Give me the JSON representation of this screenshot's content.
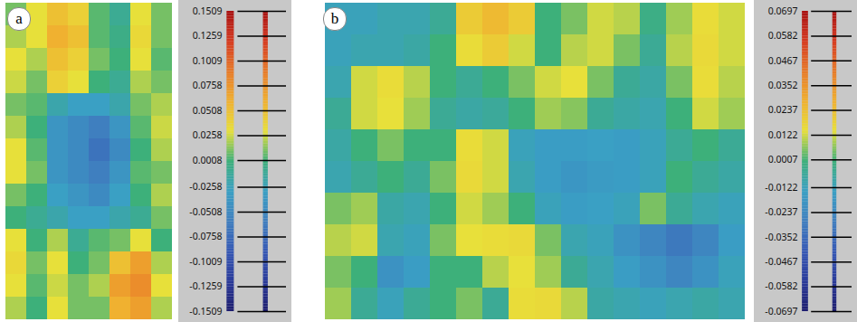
{
  "chart_data": [
    {
      "type": "heatmap",
      "title": "a",
      "tick_labels": false,
      "cells": [
        [
          0.01,
          0.03,
          0.05,
          0.04,
          0.005,
          -0.01,
          0.03,
          0.01
        ],
        [
          0.02,
          0.03,
          0.06,
          0.05,
          0.005,
          -0.005,
          0.035,
          0.01
        ],
        [
          0.03,
          0.02,
          0.05,
          0.04,
          0.01,
          0.0,
          0.03,
          0.005
        ],
        [
          0.025,
          0.01,
          0.04,
          0.03,
          0.0,
          -0.01,
          0.02,
          0.01
        ],
        [
          0.01,
          0.005,
          -0.02,
          -0.03,
          -0.03,
          -0.02,
          0.01,
          0.02
        ],
        [
          0.02,
          0.0,
          -0.04,
          -0.05,
          -0.06,
          -0.04,
          0.005,
          0.025
        ],
        [
          0.03,
          0.005,
          -0.04,
          -0.05,
          -0.07,
          -0.05,
          0.0,
          0.02
        ],
        [
          0.03,
          0.01,
          -0.04,
          -0.05,
          -0.06,
          -0.04,
          0.005,
          0.01
        ],
        [
          0.01,
          0.0,
          -0.03,
          -0.04,
          -0.05,
          -0.03,
          0.0,
          0.02
        ],
        [
          0.0,
          -0.01,
          -0.02,
          -0.03,
          -0.03,
          -0.02,
          -0.01,
          0.01
        ],
        [
          0.03,
          0.0,
          0.02,
          -0.01,
          0.005,
          0.01,
          0.03,
          0.0
        ],
        [
          0.035,
          0.01,
          0.03,
          0.0,
          0.01,
          0.05,
          0.07,
          0.02
        ],
        [
          0.03,
          0.005,
          0.025,
          0.01,
          0.02,
          0.07,
          0.08,
          0.03
        ],
        [
          0.02,
          0.0,
          0.03,
          0.01,
          0.01,
          0.06,
          0.07,
          0.02
        ]
      ],
      "colorbar": {
        "range": [
          -0.1509,
          0.1509
        ],
        "ticks": [
          0.1509,
          0.1259,
          0.1009,
          0.0758,
          0.0508,
          0.0258,
          0.0008,
          -0.0258,
          -0.0508,
          -0.0758,
          -0.1009,
          -0.1259,
          -0.1509
        ]
      }
    },
    {
      "type": "heatmap",
      "title": "b",
      "tick_labels": false,
      "cells": [
        [
          -0.012,
          -0.012,
          -0.01,
          -0.01,
          -0.005,
          0.02,
          0.025,
          0.02,
          0.0,
          0.005,
          0.012,
          0.01,
          -0.002,
          0.008,
          0.015,
          0.012
        ],
        [
          -0.012,
          -0.01,
          -0.01,
          -0.008,
          0.0,
          0.015,
          0.02,
          0.012,
          0.0,
          0.01,
          0.012,
          0.005,
          -0.005,
          0.01,
          0.016,
          0.012
        ],
        [
          -0.01,
          0.012,
          0.015,
          0.01,
          0.0,
          -0.005,
          0.0,
          0.005,
          0.012,
          0.014,
          0.005,
          -0.005,
          -0.008,
          0.005,
          0.015,
          0.01
        ],
        [
          -0.005,
          0.012,
          0.014,
          0.008,
          -0.005,
          -0.008,
          -0.006,
          0.0,
          0.008,
          0.006,
          -0.005,
          -0.008,
          -0.01,
          0.0,
          0.012,
          0.008
        ],
        [
          -0.008,
          0.0,
          0.005,
          0.0,
          0.0,
          0.015,
          0.012,
          -0.012,
          -0.015,
          -0.015,
          -0.014,
          -0.015,
          -0.012,
          -0.005,
          0.0,
          -0.005
        ],
        [
          -0.01,
          -0.005,
          0.0,
          -0.005,
          0.005,
          0.016,
          0.012,
          -0.01,
          -0.015,
          -0.018,
          -0.016,
          -0.015,
          -0.012,
          0.0,
          -0.005,
          -0.008
        ],
        [
          0.005,
          0.008,
          -0.008,
          -0.01,
          0.0,
          0.012,
          0.008,
          0.0,
          -0.012,
          -0.015,
          -0.014,
          -0.012,
          0.005,
          -0.005,
          -0.01,
          -0.012
        ],
        [
          0.01,
          0.012,
          -0.01,
          -0.012,
          0.005,
          0.014,
          0.015,
          0.016,
          0.005,
          -0.01,
          -0.012,
          -0.02,
          -0.025,
          -0.03,
          -0.025,
          -0.015
        ],
        [
          0.005,
          0.0,
          -0.02,
          -0.015,
          0.0,
          0.0,
          0.01,
          0.014,
          0.008,
          -0.005,
          -0.01,
          -0.015,
          -0.02,
          -0.025,
          -0.02,
          -0.012
        ],
        [
          0.008,
          -0.005,
          -0.012,
          -0.005,
          0.0,
          0.005,
          -0.005,
          0.015,
          0.016,
          0.01,
          -0.008,
          -0.01,
          -0.012,
          -0.01,
          -0.008,
          -0.01
        ]
      ],
      "colorbar": {
        "range": [
          -0.0697,
          0.0697
        ],
        "ticks": [
          0.0697,
          0.0582,
          0.0467,
          0.0352,
          0.0237,
          0.0122,
          0.0007,
          -0.0122,
          -0.0237,
          -0.0352,
          -0.0467,
          -0.0582,
          -0.0697
        ]
      }
    }
  ]
}
